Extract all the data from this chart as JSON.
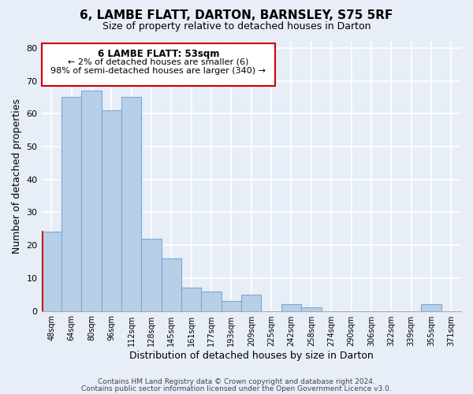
{
  "title": "6, LAMBE FLATT, DARTON, BARNSLEY, S75 5RF",
  "subtitle": "Size of property relative to detached houses in Darton",
  "xlabel": "Distribution of detached houses by size in Darton",
  "ylabel": "Number of detached properties",
  "bar_labels": [
    "48sqm",
    "64sqm",
    "80sqm",
    "96sqm",
    "112sqm",
    "128sqm",
    "145sqm",
    "161sqm",
    "177sqm",
    "193sqm",
    "209sqm",
    "225sqm",
    "242sqm",
    "258sqm",
    "274sqm",
    "290sqm",
    "306sqm",
    "322sqm",
    "339sqm",
    "355sqm",
    "371sqm"
  ],
  "bar_values": [
    24,
    65,
    67,
    61,
    65,
    22,
    16,
    7,
    6,
    3,
    5,
    0,
    2,
    1,
    0,
    0,
    0,
    0,
    0,
    2,
    0
  ],
  "bar_color": "#b8cfe8",
  "bar_edge_color": "#7aa8d4",
  "ylim": [
    0,
    82
  ],
  "yticks": [
    0,
    10,
    20,
    30,
    40,
    50,
    60,
    70,
    80
  ],
  "annotation_title": "6 LAMBE FLATT: 53sqm",
  "annotation_line1": "← 2% of detached houses are smaller (6)",
  "annotation_line2": "98% of semi-detached houses are larger (340) →",
  "footer_line1": "Contains HM Land Registry data © Crown copyright and database right 2024.",
  "footer_line2": "Contains public sector information licensed under the Open Government Licence v3.0.",
  "background_color": "#e8eef7",
  "plot_bg_color": "#e8eef7",
  "red_line_color": "#cc0000",
  "box_edge_color": "#cc0000"
}
